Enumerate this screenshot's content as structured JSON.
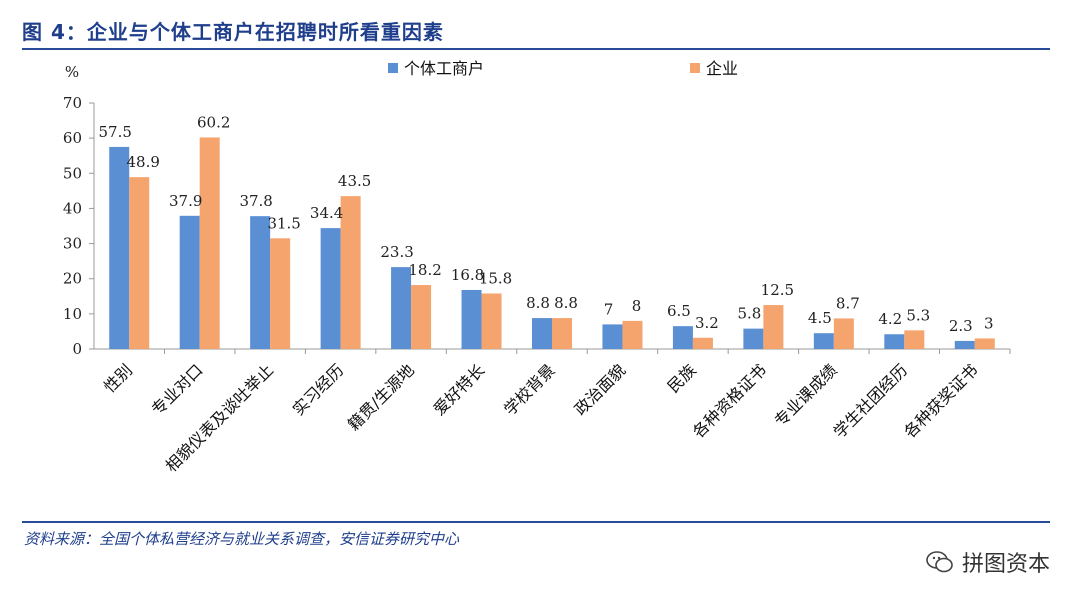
{
  "figure_title": "图 4：企业与个体工商户在招聘时所看重因素",
  "source_note": "资料来源：全国个体私营经济与就业关系调查，安信证券研究中心",
  "watermark": "拼图资本",
  "colors": {
    "series_0": "#5b8fd4",
    "series_1": "#f4a46c",
    "title": "#1f3e8c",
    "axis": "#999999"
  },
  "chart_data": {
    "type": "bar",
    "title": "企业与个体工商户在招聘时所看重因素",
    "ylabel": "%",
    "xlabel": "",
    "ylim": [
      0,
      70
    ],
    "yticks": [
      0,
      10,
      20,
      30,
      40,
      50,
      60,
      70
    ],
    "legend_position": "top-center",
    "grid": false,
    "categories": [
      "性别",
      "专业对口",
      "相貌仪表及谈吐举止",
      "实习经历",
      "籍贯/生源地",
      "爱好特长",
      "学校背景",
      "政治面貌",
      "民族",
      "各种资格证书",
      "专业课成绩",
      "学生社团经历",
      "各种获奖证书"
    ],
    "series": [
      {
        "name": "个体工商户",
        "values": [
          57.5,
          37.9,
          37.8,
          34.4,
          23.3,
          16.8,
          8.8,
          7,
          6.5,
          5.8,
          4.5,
          4.2,
          2.3
        ]
      },
      {
        "name": "企业",
        "values": [
          48.9,
          60.2,
          31.5,
          43.5,
          18.2,
          15.8,
          8.8,
          8,
          3.2,
          12.5,
          8.7,
          5.3,
          3
        ]
      }
    ]
  }
}
